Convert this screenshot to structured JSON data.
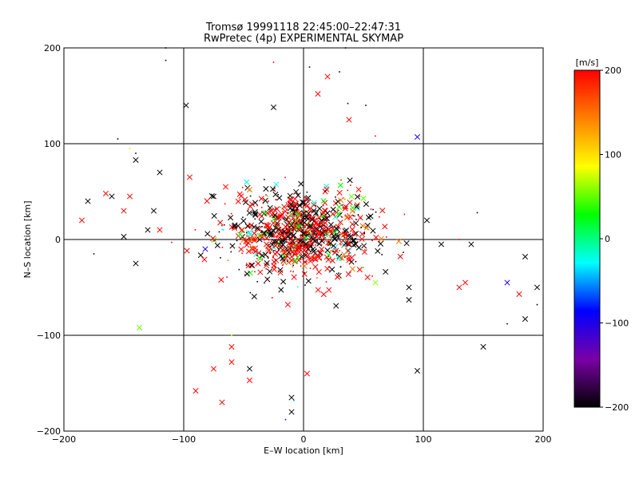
{
  "chart_data": {
    "type": "scatter",
    "title": "Tromsø 19991118 22:45:00–22:47:31",
    "subtitle": "RwPretec (4p) EXPERIMENTAL SKYMAP",
    "xlabel": "E–W location [km]",
    "ylabel": "N–S location [km]",
    "xlim": [
      -200,
      200
    ],
    "ylim": [
      -200,
      200
    ],
    "x_ticks": [
      -200,
      -100,
      0,
      100,
      200
    ],
    "y_ticks": [
      -200,
      -100,
      0,
      100,
      200
    ],
    "x_tick_labels": [
      "−200",
      "−100",
      "0",
      "100",
      "200"
    ],
    "y_tick_labels": [
      "−200",
      "−100",
      "0",
      "100",
      "200"
    ],
    "grid": true,
    "marker_key": "large crosses and small dots drawn at each location",
    "colorbar": {
      "unit_label": "[m/s]",
      "range": [
        -200,
        200
      ],
      "ticks": [
        200,
        100,
        0,
        -100,
        -200
      ],
      "tick_labels": [
        "200",
        "100",
        "0",
        "−100",
        "−200"
      ],
      "colors": [
        "#000000",
        "#7a00a6",
        "#0000ff",
        "#00ffff",
        "#00ff00",
        "#ffff00",
        "#ff8000",
        "#ff0000"
      ]
    },
    "points": [
      {
        "x": -180,
        "y": 40,
        "v": -200,
        "m": "x"
      },
      {
        "x": -185,
        "y": 20,
        "v": 200,
        "m": "x"
      },
      {
        "x": -165,
        "y": 48,
        "v": 200,
        "m": "x"
      },
      {
        "x": -160,
        "y": 45,
        "v": -200,
        "m": "x"
      },
      {
        "x": -150,
        "y": 30,
        "v": 200,
        "m": "x"
      },
      {
        "x": -145,
        "y": 45,
        "v": 200,
        "m": "x"
      },
      {
        "x": -140,
        "y": 83,
        "v": -200,
        "m": "x"
      },
      {
        "x": -150,
        "y": 3,
        "v": -200,
        "m": "x"
      },
      {
        "x": -140,
        "y": -25,
        "v": -200,
        "m": "x"
      },
      {
        "x": -137,
        "y": -92,
        "v": 50,
        "m": "x"
      },
      {
        "x": -125,
        "y": 30,
        "v": -200,
        "m": "x"
      },
      {
        "x": -130,
        "y": 10,
        "v": -200,
        "m": "x"
      },
      {
        "x": -120,
        "y": 10,
        "v": 200,
        "m": "x"
      },
      {
        "x": -120,
        "y": 70,
        "v": -200,
        "m": "x"
      },
      {
        "x": -98,
        "y": 140,
        "v": -200,
        "m": "x"
      },
      {
        "x": -95,
        "y": 65,
        "v": 200,
        "m": "x"
      },
      {
        "x": -90,
        "y": -158,
        "v": 200,
        "m": "x"
      },
      {
        "x": -75,
        "y": 45,
        "v": -200,
        "m": "x"
      },
      {
        "x": -65,
        "y": 55,
        "v": 200,
        "m": "x"
      },
      {
        "x": -60,
        "y": -112,
        "v": 200,
        "m": "x"
      },
      {
        "x": -60,
        "y": -128,
        "v": 200,
        "m": "x"
      },
      {
        "x": -68,
        "y": -170,
        "v": 200,
        "m": "x"
      },
      {
        "x": -75,
        "y": -135,
        "v": 200,
        "m": "x"
      },
      {
        "x": -45,
        "y": -135,
        "v": -200,
        "m": "x"
      },
      {
        "x": -45,
        "y": -147,
        "v": 200,
        "m": "x"
      },
      {
        "x": -25,
        "y": 138,
        "v": -200,
        "m": "x"
      },
      {
        "x": -10,
        "y": -180,
        "v": -200,
        "m": "x"
      },
      {
        "x": -10,
        "y": -165,
        "v": -200,
        "m": "x"
      },
      {
        "x": 3,
        "y": -140,
        "v": 200,
        "m": "x"
      },
      {
        "x": 20,
        "y": 170,
        "v": 200,
        "m": "x"
      },
      {
        "x": 12,
        "y": 152,
        "v": 200,
        "m": "x"
      },
      {
        "x": 38,
        "y": 125,
        "v": 200,
        "m": "x"
      },
      {
        "x": 95,
        "y": 107,
        "v": -100,
        "m": "x"
      },
      {
        "x": 103,
        "y": 20,
        "v": -200,
        "m": "x"
      },
      {
        "x": 95,
        "y": -137,
        "v": -200,
        "m": "x"
      },
      {
        "x": 88,
        "y": -50,
        "v": -200,
        "m": "x"
      },
      {
        "x": 88,
        "y": -63,
        "v": -200,
        "m": "x"
      },
      {
        "x": 115,
        "y": -5,
        "v": -200,
        "m": "x"
      },
      {
        "x": 130,
        "y": -50,
        "v": 200,
        "m": "x"
      },
      {
        "x": 135,
        "y": -45,
        "v": 200,
        "m": "x"
      },
      {
        "x": 140,
        "y": -5,
        "v": -200,
        "m": "x"
      },
      {
        "x": 150,
        "y": -112,
        "v": -200,
        "m": "x"
      },
      {
        "x": 170,
        "y": -45,
        "v": -100,
        "m": "x"
      },
      {
        "x": 180,
        "y": -57,
        "v": 200,
        "m": "x"
      },
      {
        "x": 185,
        "y": -18,
        "v": -200,
        "m": "x"
      },
      {
        "x": 185,
        "y": -83,
        "v": -200,
        "m": "x"
      },
      {
        "x": 195,
        "y": -50,
        "v": -200,
        "m": "x"
      },
      {
        "x": 40,
        "y": 45,
        "v": 50,
        "m": "x"
      },
      {
        "x": 50,
        "y": 43,
        "v": 50,
        "m": "x"
      },
      {
        "x": 60,
        "y": -45,
        "v": 60,
        "m": "x"
      },
      {
        "x": -82,
        "y": -10,
        "v": -100,
        "m": "x"
      },
      {
        "x": -45,
        "y": 52,
        "v": 150,
        "m": "x"
      },
      {
        "x": -115,
        "y": 200,
        "v": -200,
        "m": "."
      },
      {
        "x": -115,
        "y": 187,
        "v": -200,
        "m": "."
      },
      {
        "x": -155,
        "y": 105,
        "v": -200,
        "m": "."
      },
      {
        "x": -140,
        "y": 90,
        "v": -200,
        "m": "."
      },
      {
        "x": -145,
        "y": 95,
        "v": 100,
        "m": "."
      },
      {
        "x": -175,
        "y": -15,
        "v": -200,
        "m": "."
      },
      {
        "x": -110,
        "y": -3,
        "v": 200,
        "m": "."
      },
      {
        "x": -60,
        "y": -100,
        "v": 100,
        "m": "."
      },
      {
        "x": -25,
        "y": 185,
        "v": 200,
        "m": "."
      },
      {
        "x": 5,
        "y": 180,
        "v": -200,
        "m": "."
      },
      {
        "x": 30,
        "y": 175,
        "v": -200,
        "m": "."
      },
      {
        "x": 35,
        "y": 200,
        "v": -200,
        "m": "."
      },
      {
        "x": 37,
        "y": 142,
        "v": -200,
        "m": "."
      },
      {
        "x": 52,
        "y": 140,
        "v": -200,
        "m": "."
      },
      {
        "x": 60,
        "y": 108,
        "v": 200,
        "m": "."
      },
      {
        "x": 145,
        "y": 28,
        "v": -200,
        "m": "."
      },
      {
        "x": 170,
        "y": -88,
        "v": -200,
        "m": "."
      },
      {
        "x": 195,
        "y": -68,
        "v": -200,
        "m": "."
      },
      {
        "x": 130,
        "y": 0,
        "v": 200,
        "m": "."
      },
      {
        "x": -8,
        "y": -168,
        "v": -50,
        "m": "."
      },
      {
        "x": -15,
        "y": -188,
        "v": -100,
        "m": "."
      }
    ],
    "cloud": {
      "x_center": -3,
      "y_center": 5,
      "x_spread": 30,
      "y_spread": 22,
      "count": 900
    }
  }
}
